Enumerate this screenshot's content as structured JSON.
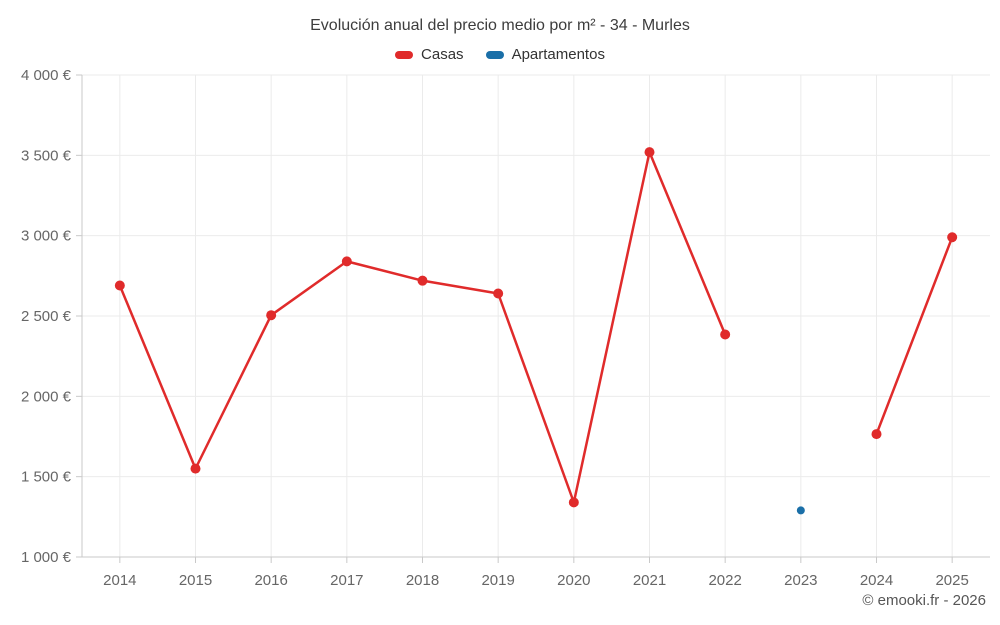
{
  "title": "Evolución anual del precio medio por m² - 34 - Murles",
  "footer": "© emooki.fr - 2026",
  "legend": [
    {
      "label": "Casas",
      "color": "#e02b2b"
    },
    {
      "label": "Apartamentos",
      "color": "#1a6fa8"
    }
  ],
  "colors": {
    "casas": "#e02b2b",
    "apartamentos": "#1a6fa8",
    "gridline": "#ebebeb",
    "axis": "#c9c9c9",
    "tick_label": "#666666",
    "title_text": "#3d3d3d"
  },
  "chart_data": {
    "type": "line",
    "title": "Evolución anual del precio medio por m² - 34 - Murles",
    "xlabel": "",
    "ylabel": "",
    "x": [
      "2014",
      "2015",
      "2016",
      "2017",
      "2018",
      "2019",
      "2020",
      "2021",
      "2022",
      "2023",
      "2024",
      "2025"
    ],
    "series": [
      {
        "name": "Casas",
        "color": "#e02b2b",
        "values": [
          2690,
          1550,
          2505,
          2840,
          2720,
          2640,
          1340,
          3520,
          2385,
          null,
          1765,
          2990
        ]
      },
      {
        "name": "Apartamentos",
        "color": "#1a6fa8",
        "values": [
          null,
          null,
          null,
          null,
          null,
          null,
          null,
          null,
          null,
          1290,
          null,
          null
        ]
      }
    ],
    "ylim": [
      1000,
      4000
    ],
    "ytick_step": 500,
    "ytick_labels": [
      "4 000 €",
      "3 500 €",
      "3 000 €",
      "2 500 €",
      "2 000 €",
      "1 500 €",
      "1 000 €"
    ],
    "grid": true,
    "legend_position": "top"
  }
}
